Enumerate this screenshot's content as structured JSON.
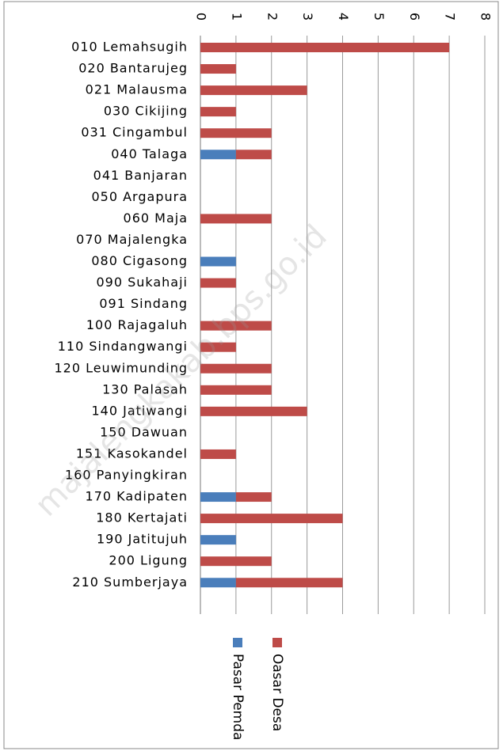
{
  "chart_data": {
    "type": "bar",
    "orientation": "horizontal",
    "stacked": true,
    "categories": [
      "010 Lemahsugih",
      "020 Bantarujeg",
      "021 Malausma",
      "030 Cikijing",
      "031 Cingambul",
      "040 Talaga",
      "041 Banjaran",
      "050 Argapura",
      "060 Maja",
      "070 Majalengka",
      "080 Cigasong",
      "090 Sukahaji",
      "091 Sindang",
      "100 Rajagaluh",
      "110 Sindangwangi",
      "120 Leuwimunding",
      "130 Palasah",
      "140 Jatiwangi",
      "150 Dawuan",
      "151 Kasokandel",
      "160 Panyingkiran",
      "170 Kadipaten",
      "180 Kertajati",
      "190 Jatitujuh",
      "200 Ligung",
      "210 Sumberjaya"
    ],
    "series": [
      {
        "name": "Pasar Pemda",
        "color": "#4a7ebb",
        "values": [
          0,
          0,
          0,
          0,
          0,
          1,
          0,
          0,
          0,
          0,
          1,
          0,
          0,
          0,
          0,
          0,
          0,
          0,
          0,
          0,
          0,
          1,
          0,
          1,
          0,
          1
        ]
      },
      {
        "name": "Oasar Desa",
        "color": "#be4b48",
        "values": [
          7,
          1,
          3,
          1,
          2,
          1,
          0,
          0,
          2,
          0,
          0,
          1,
          0,
          2,
          1,
          2,
          2,
          3,
          0,
          1,
          0,
          1,
          4,
          0,
          2,
          3
        ]
      }
    ],
    "xlim": [
      0,
      8
    ],
    "xticks": [
      0,
      1,
      2,
      3,
      4,
      5,
      6,
      7,
      8
    ],
    "grid": true,
    "watermark": "majalengkakab.bps.go.id"
  }
}
